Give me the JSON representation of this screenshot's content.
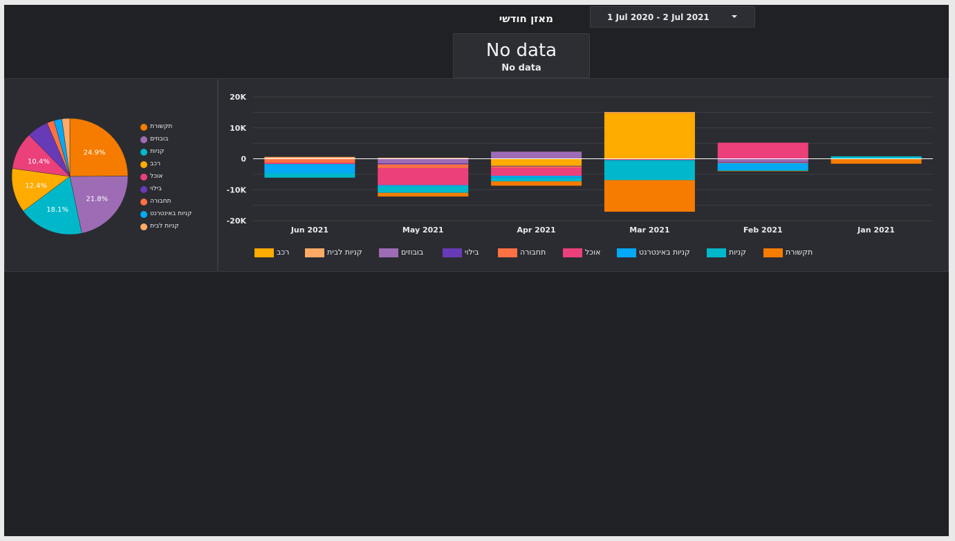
{
  "header": {
    "title": "מאזן חודשי",
    "date_range": "1 Jul 2020 - 2 Jul 2021"
  },
  "scorecard": {
    "value": "No data",
    "label": "No data"
  },
  "colors": {
    "תקשורת": "#f57c00",
    "בובוזים": "#9e6bb5",
    "קניות": "#00b8c9",
    "רכב": "#ffab00",
    "אוכל": "#ec407a",
    "בילוי": "#673ab7",
    "תחבורה": "#ff7043",
    "קניות באינטרנט": "#03a9f4",
    "קניות לבית": "#ffab66"
  },
  "chart_data": [
    {
      "type": "pie",
      "title": "",
      "labels": [
        "תקשורת",
        "בובוזים",
        "קניות",
        "רכב",
        "אוכל",
        "בילוי",
        "תחבורה",
        "קניות באינטרנט",
        "קניות לבית"
      ],
      "values": [
        24.9,
        21.8,
        18.1,
        12.4,
        10.4,
        6.0,
        2.0,
        2.2,
        2.2
      ],
      "data_labels": [
        "24.9%",
        "21.8%",
        "18.1%",
        "12.4%",
        "10.4%",
        "",
        "",
        "",
        ""
      ],
      "legend": "right"
    },
    {
      "type": "bar",
      "stacked": true,
      "title": "",
      "categories": [
        "Jun 2021",
        "May 2021",
        "Apr 2021",
        "Mar 2021",
        "Feb 2021",
        "Jan 2021"
      ],
      "ylim": [
        -20000,
        20000
      ],
      "yticks": [
        "20K",
        "10K",
        "0",
        "-10K",
        "-20K"
      ],
      "ytick_values": [
        20000,
        10000,
        0,
        -10000,
        -20000
      ],
      "grid": true,
      "legend": "bottom",
      "legend_order": [
        "רכב",
        "קניות לבית",
        "בובוזים",
        "בילוי",
        "תחבורה",
        "אוכל",
        "קניות באינטרנט",
        "קניות",
        "תקשורת"
      ],
      "series": [
        {
          "name": "רכב",
          "values": [
            0,
            0,
            -2300,
            14800,
            0,
            0
          ]
        },
        {
          "name": "קניות לבית",
          "values": [
            600,
            300,
            0,
            300,
            0,
            0
          ]
        },
        {
          "name": "בובוזים",
          "values": [
            0,
            -1500,
            2300,
            0,
            -1000,
            0
          ]
        },
        {
          "name": "בילוי",
          "values": [
            0,
            -300,
            -200,
            0,
            -200,
            0
          ]
        },
        {
          "name": "תחבורה",
          "values": [
            -1300,
            -1200,
            -400,
            -200,
            -200,
            0
          ]
        },
        {
          "name": "אוכל",
          "values": [
            -400,
            -5500,
            -2600,
            -200,
            5200,
            0
          ]
        },
        {
          "name": "קניות באינטרנט",
          "values": [
            -3000,
            -300,
            -600,
            -200,
            -2200,
            0
          ]
        },
        {
          "name": "קניות",
          "values": [
            -1400,
            -2200,
            -1200,
            -6300,
            -300,
            800
          ]
        },
        {
          "name": "תקשורת",
          "values": [
            0,
            -1200,
            -1400,
            -10200,
            -100,
            -1600
          ]
        }
      ]
    }
  ]
}
